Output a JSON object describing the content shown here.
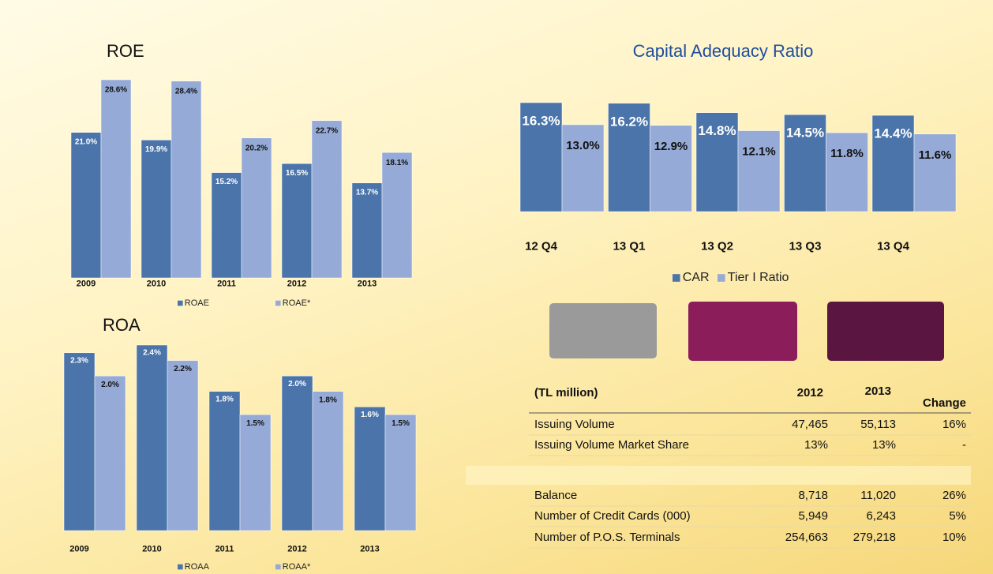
{
  "chart_data": [
    {
      "type": "bar",
      "title": "ROE",
      "categories": [
        "2009",
        "2010",
        "2011",
        "2012",
        "2013"
      ],
      "series": [
        {
          "name": "ROAE",
          "color": "#4a74aa",
          "values": [
            21.0,
            19.9,
            15.2,
            16.5,
            13.7
          ],
          "value_labels": [
            "21.0%",
            "19.9%",
            "15.2%",
            "16.5%",
            "13.7%"
          ]
        },
        {
          "name": "ROAE*",
          "color": "#95aad6",
          "values": [
            28.6,
            28.4,
            20.2,
            22.7,
            18.1
          ],
          "value_labels": [
            "28.6%",
            "28.4%",
            "20.2%",
            "22.7%",
            "18.1%"
          ]
        }
      ]
    },
    {
      "type": "bar",
      "title": "Capital Adequacy Ratio",
      "categories": [
        "12 Q4",
        "13 Q1",
        "13 Q2",
        "13 Q3",
        "13 Q4"
      ],
      "series": [
        {
          "name": "CAR",
          "color": "#4a74aa",
          "values": [
            16.3,
            16.2,
            14.8,
            14.5,
            14.4
          ],
          "value_labels": [
            "16.3%",
            "16.2%",
            "14.8%",
            "14.5%",
            "14.4%"
          ]
        },
        {
          "name": "Tier I Ratio",
          "color": "#95aad6",
          "values": [
            13.0,
            12.9,
            12.1,
            11.8,
            11.6
          ],
          "value_labels": [
            "13.0%",
            "12.9%",
            "12.1%",
            "11.8%",
            "11.6%"
          ]
        }
      ]
    },
    {
      "type": "bar",
      "title": "ROA",
      "categories": [
        "2009",
        "2010",
        "2011",
        "2012",
        "2013"
      ],
      "series": [
        {
          "name": "ROAA",
          "color": "#4a74aa",
          "values": [
            2.3,
            2.4,
            1.8,
            2.0,
            1.6
          ],
          "value_labels": [
            "2.3%",
            "2.4%",
            "1.8%",
            "2.0%",
            "1.6%"
          ]
        },
        {
          "name": "ROAA*",
          "color": "#95aad6",
          "values": [
            2.0,
            2.2,
            1.5,
            1.8,
            1.5
          ],
          "value_labels": [
            "2.0%",
            "2.2%",
            "1.5%",
            "1.8%",
            "1.5%"
          ]
        }
      ]
    }
  ],
  "table": {
    "header": [
      "(TL million)",
      "2012",
      "2013",
      "Change"
    ],
    "rows": [
      [
        "Issuing Volume",
        "47,465",
        "55,113",
        "16%"
      ],
      [
        "Issuing Volume Market Share",
        "13%",
        "13%",
        "-"
      ],
      [
        "Balance",
        "8,718",
        "11,020",
        "26%"
      ],
      [
        "Number of Credit Cards (000)",
        "5,949",
        "6,243",
        "5%"
      ],
      [
        "Number of P.O.S. Terminals",
        "254,663",
        "279,218",
        "10%"
      ]
    ]
  }
}
